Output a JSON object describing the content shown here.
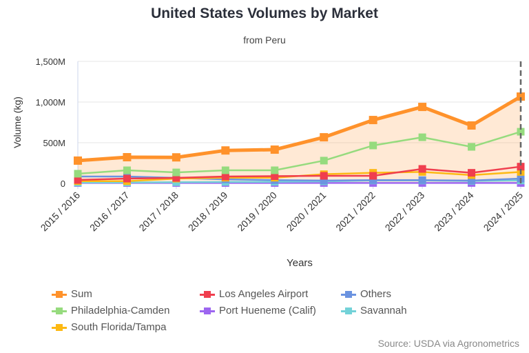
{
  "chart_data": {
    "type": "line",
    "title": "United States Volumes by Market",
    "subtitle": "from Peru",
    "xlabel": "Years",
    "ylabel": "Volume (kg)",
    "ylim": [
      0,
      1500000000
    ],
    "yticks": [
      {
        "v": 0,
        "label": "0"
      },
      {
        "v": 500000000,
        "label": "500M"
      },
      {
        "v": 1000000000,
        "label": "1,000M"
      },
      {
        "v": 1500000000,
        "label": "1,500M"
      }
    ],
    "grid": true,
    "legend_position": "bottom",
    "categories": [
      "2015 / 2016",
      "2016 / 2017",
      "2017 / 2018",
      "2018 / 2019",
      "2019 / 2020",
      "2020 / 2021",
      "2021 / 2022",
      "2022 / 2023",
      "2023 / 2024",
      "2024 / 2025"
    ],
    "series": [
      {
        "name": "Sum",
        "color": "#ff922b",
        "area": true,
        "values": [
          280000000,
          322000000,
          320000000,
          405000000,
          415000000,
          567000000,
          779000000,
          940000000,
          712000000,
          1067000000
        ]
      },
      {
        "name": "Philadelphia-Camden",
        "color": "#96db7e",
        "values": [
          119000000,
          161000000,
          135000000,
          161000000,
          161000000,
          280000000,
          466000000,
          567000000,
          449000000,
          635000000
        ]
      },
      {
        "name": "South Florida/Tampa",
        "color": "#fdb913",
        "values": [
          28000000,
          28000000,
          59000000,
          70000000,
          70000000,
          113000000,
          130000000,
          141000000,
          102000000,
          141000000
        ]
      },
      {
        "name": "Los Angeles Airport",
        "color": "#f03e4e",
        "values": [
          42000000,
          59000000,
          68000000,
          85000000,
          89000000,
          93000000,
          93000000,
          178000000,
          130000000,
          206000000
        ]
      },
      {
        "name": "Port Hueneme (Calif)",
        "color": "#9d66f0",
        "values": [
          5000000,
          5000000,
          5000000,
          5000000,
          5000000,
          5000000,
          5000000,
          5000000,
          5000000,
          5000000
        ]
      },
      {
        "name": "Others",
        "color": "#6b93e0",
        "values": [
          85000000,
          85000000,
          68000000,
          50000000,
          40000000,
          35000000,
          40000000,
          40000000,
          35000000,
          59000000
        ]
      },
      {
        "name": "Savannah",
        "color": "#73d2d8",
        "values": [
          10000000,
          12000000,
          15000000,
          18000000,
          20000000,
          25000000,
          36000000,
          36000000,
          30000000,
          36000000
        ]
      }
    ],
    "legend_order": [
      0,
      3,
      5,
      1,
      4,
      6,
      2
    ],
    "source": "Source: USDA via Agronometrics"
  }
}
